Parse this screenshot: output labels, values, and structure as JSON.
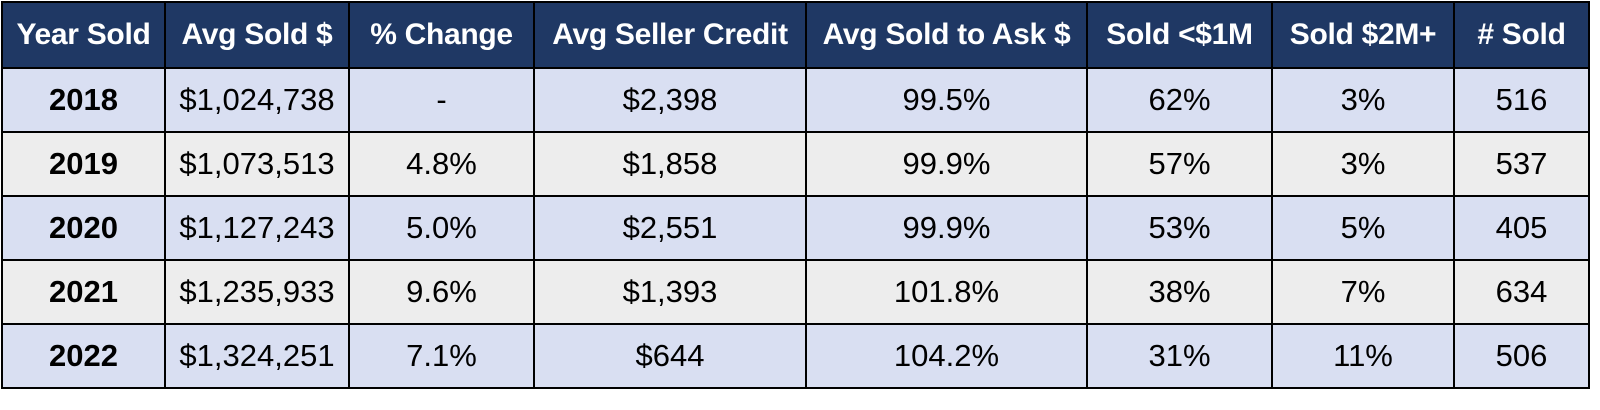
{
  "colors": {
    "header_bg": "#1f3864",
    "header_text": "#ffffff",
    "row_blue": "#d9dff2",
    "row_gray": "#ededed",
    "border": "#000000"
  },
  "chart_data": {
    "type": "table",
    "columns": [
      "Year Sold",
      "Avg Sold $",
      "% Change",
      "Avg Seller Credit",
      "Avg Sold to Ask $",
      "Sold <$1M",
      "Sold $2M+",
      "# Sold"
    ],
    "rows": [
      {
        "year": "2018",
        "avg_sold": "$1,024,738",
        "pct_change": "-",
        "avg_seller_credit": "$2,398",
        "avg_sold_to_ask": "99.5%",
        "sold_under_1m": "62%",
        "sold_2m_plus": "3%",
        "num_sold": "516"
      },
      {
        "year": "2019",
        "avg_sold": "$1,073,513",
        "pct_change": "4.8%",
        "avg_seller_credit": "$1,858",
        "avg_sold_to_ask": "99.9%",
        "sold_under_1m": "57%",
        "sold_2m_plus": "3%",
        "num_sold": "537"
      },
      {
        "year": "2020",
        "avg_sold": "$1,127,243",
        "pct_change": "5.0%",
        "avg_seller_credit": "$2,551",
        "avg_sold_to_ask": "99.9%",
        "sold_under_1m": "53%",
        "sold_2m_plus": "5%",
        "num_sold": "405"
      },
      {
        "year": "2021",
        "avg_sold": "$1,235,933",
        "pct_change": "9.6%",
        "avg_seller_credit": "$1,393",
        "avg_sold_to_ask": "101.8%",
        "sold_under_1m": "38%",
        "sold_2m_plus": "7%",
        "num_sold": "634"
      },
      {
        "year": "2022",
        "avg_sold": "$1,324,251",
        "pct_change": "7.1%",
        "avg_seller_credit": "$644",
        "avg_sold_to_ask": "104.2%",
        "sold_under_1m": "31%",
        "sold_2m_plus": "11%",
        "num_sold": "506"
      }
    ]
  }
}
